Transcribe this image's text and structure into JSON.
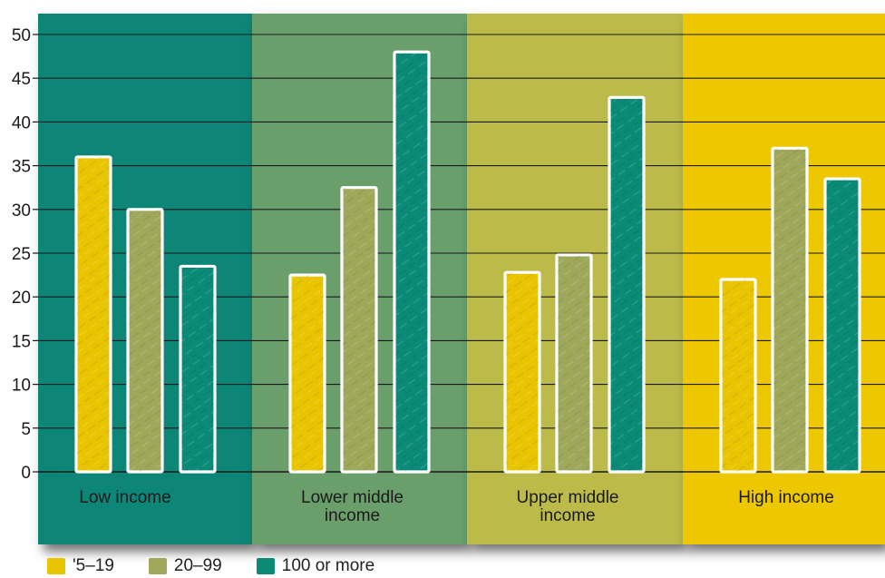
{
  "chart_data": {
    "type": "bar",
    "categories": [
      "Low income",
      "Lower middle\nincome",
      "Upper middle\nincome",
      "High income"
    ],
    "series": [
      {
        "name": "'5–19",
        "color": "#e9c400",
        "values": [
          36,
          22.5,
          22.8,
          22
        ]
      },
      {
        "name": "20–99",
        "color": "#9fa85a",
        "values": [
          30,
          32.5,
          24.8,
          37
        ]
      },
      {
        "name": "100 or more",
        "color": "#0b8a78",
        "values": [
          23.5,
          48,
          42.8,
          33.5
        ]
      }
    ],
    "panel_colors": [
      "#0a8577",
      "#6a9f6c",
      "#bcbb48",
      "#edc800"
    ],
    "ylim": [
      0,
      50
    ],
    "yticks": [
      0,
      5,
      10,
      15,
      20,
      25,
      30,
      35,
      40,
      45,
      50
    ],
    "grid": true,
    "legend_position": "bottom-left",
    "title": "",
    "xlabel": "",
    "ylabel": ""
  }
}
